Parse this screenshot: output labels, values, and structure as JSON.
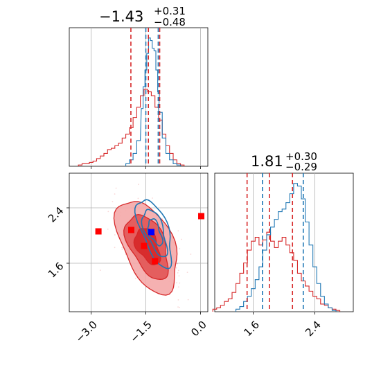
{
  "colors": {
    "red": "#d62728",
    "blue": "#1f77b4",
    "red_fill": "#f4a8a8",
    "red_mid": "#e25555",
    "red_dark": "#d62728",
    "grid": "#b0b0b0",
    "marker_red": "#ff0000",
    "marker_blue": "#0000ff"
  },
  "chart_data": [
    {
      "type": "histogram",
      "panel": "top-left",
      "param": 1,
      "title_value": "−1.43",
      "title_plus": "+0.31",
      "title_minus": "−0.48",
      "xlim": [
        -3.6,
        0.2
      ],
      "ylim": [
        0,
        1.08
      ],
      "xticks": [
        -3.0,
        -1.5,
        0.0
      ],
      "quantile_lines": {
        "red": [
          -1.91,
          -1.43,
          -1.12
        ],
        "blue": [
          -1.5,
          -1.16
        ]
      },
      "series": [
        {
          "color": "red",
          "x": [
            -3.3,
            -3.2,
            -3.1,
            -3.0,
            -2.9,
            -2.8,
            -2.7,
            -2.6,
            -2.5,
            -2.4,
            -2.3,
            -2.2,
            -2.1,
            -2.0,
            -1.9,
            -1.8,
            -1.7,
            -1.6,
            -1.5,
            -1.4,
            -1.3,
            -1.2,
            -1.1,
            -1.0,
            -0.9,
            -0.8,
            -0.7,
            -0.6,
            -0.5
          ],
          "y": [
            0.01,
            0.02,
            0.02,
            0.03,
            0.04,
            0.06,
            0.08,
            0.1,
            0.13,
            0.14,
            0.16,
            0.18,
            0.22,
            0.25,
            0.3,
            0.38,
            0.46,
            0.55,
            0.6,
            0.58,
            0.55,
            0.46,
            0.36,
            0.25,
            0.16,
            0.1,
            0.05,
            0.02,
            0.01
          ]
        },
        {
          "color": "blue",
          "x": [
            -2.0,
            -1.9,
            -1.8,
            -1.7,
            -1.6,
            -1.55,
            -1.5,
            -1.45,
            -1.4,
            -1.35,
            -1.3,
            -1.25,
            -1.2,
            -1.15,
            -1.1,
            -1.0,
            -0.9,
            -0.8,
            -0.7,
            -0.6
          ],
          "y": [
            0.02,
            0.05,
            0.1,
            0.2,
            0.45,
            0.62,
            0.75,
            0.88,
            1.0,
            0.98,
            0.92,
            0.9,
            0.75,
            0.58,
            0.42,
            0.22,
            0.1,
            0.05,
            0.02,
            0.01
          ]
        }
      ]
    },
    {
      "type": "scatter",
      "panel": "bottom-left",
      "xlim": [
        -3.6,
        0.2
      ],
      "ylim": [
        0.9,
        2.9
      ],
      "xticks": [
        -3.0,
        -1.5,
        0.0
      ],
      "yticks": [
        1.6,
        2.4
      ],
      "contours": {
        "red_levels": 3,
        "blue_levels": 3,
        "red_center": [
          -1.45,
          1.85
        ],
        "blue_center": [
          -1.25,
          2.05
        ]
      },
      "markers": [
        {
          "color": "red",
          "x": -2.8,
          "y": 2.06
        },
        {
          "color": "red",
          "x": -1.9,
          "y": 2.08
        },
        {
          "color": "red",
          "x": -1.55,
          "y": 1.85
        },
        {
          "color": "red",
          "x": -1.25,
          "y": 1.63
        },
        {
          "color": "red",
          "x": 0.02,
          "y": 2.28
        },
        {
          "color": "blue",
          "x": -1.35,
          "y": 2.05
        }
      ]
    },
    {
      "type": "histogram",
      "panel": "bottom-right",
      "param": 2,
      "title_value": "1.81",
      "title_plus": "+0.30",
      "title_minus": "−0.29",
      "xlim": [
        1.1,
        2.9
      ],
      "ylim": [
        0,
        1.08
      ],
      "xticks": [
        1.6,
        2.4
      ],
      "quantile_lines": {
        "red": [
          1.52,
          1.81,
          2.11
        ],
        "blue": [
          1.72,
          2.25
        ]
      },
      "series": [
        {
          "color": "red",
          "x": [
            1.1,
            1.15,
            1.2,
            1.25,
            1.3,
            1.35,
            1.4,
            1.45,
            1.5,
            1.55,
            1.6,
            1.65,
            1.7,
            1.75,
            1.8,
            1.85,
            1.9,
            1.95,
            2.0,
            2.05,
            2.1,
            2.15,
            2.2,
            2.25,
            2.3,
            2.35,
            2.4,
            2.45,
            2.5,
            2.55,
            2.6,
            2.65,
            2.7
          ],
          "y": [
            0.02,
            0.03,
            0.05,
            0.08,
            0.1,
            0.15,
            0.22,
            0.3,
            0.38,
            0.48,
            0.55,
            0.58,
            0.52,
            0.56,
            0.62,
            0.55,
            0.5,
            0.55,
            0.58,
            0.52,
            0.46,
            0.4,
            0.3,
            0.24,
            0.2,
            0.16,
            0.12,
            0.1,
            0.06,
            0.05,
            0.03,
            0.02,
            0.01
          ]
        },
        {
          "color": "blue",
          "x": [
            1.4,
            1.45,
            1.5,
            1.55,
            1.6,
            1.65,
            1.7,
            1.75,
            1.8,
            1.85,
            1.9,
            1.95,
            2.0,
            2.05,
            2.1,
            2.15,
            2.2,
            2.25,
            2.3,
            2.35,
            2.4,
            2.45,
            2.5,
            2.55,
            2.6,
            2.65
          ],
          "y": [
            0.02,
            0.04,
            0.08,
            0.12,
            0.18,
            0.25,
            0.35,
            0.48,
            0.6,
            0.66,
            0.72,
            0.78,
            0.8,
            0.85,
            0.92,
            1.0,
            0.98,
            0.88,
            0.7,
            0.52,
            0.35,
            0.22,
            0.12,
            0.06,
            0.03,
            0.01
          ]
        }
      ]
    }
  ]
}
